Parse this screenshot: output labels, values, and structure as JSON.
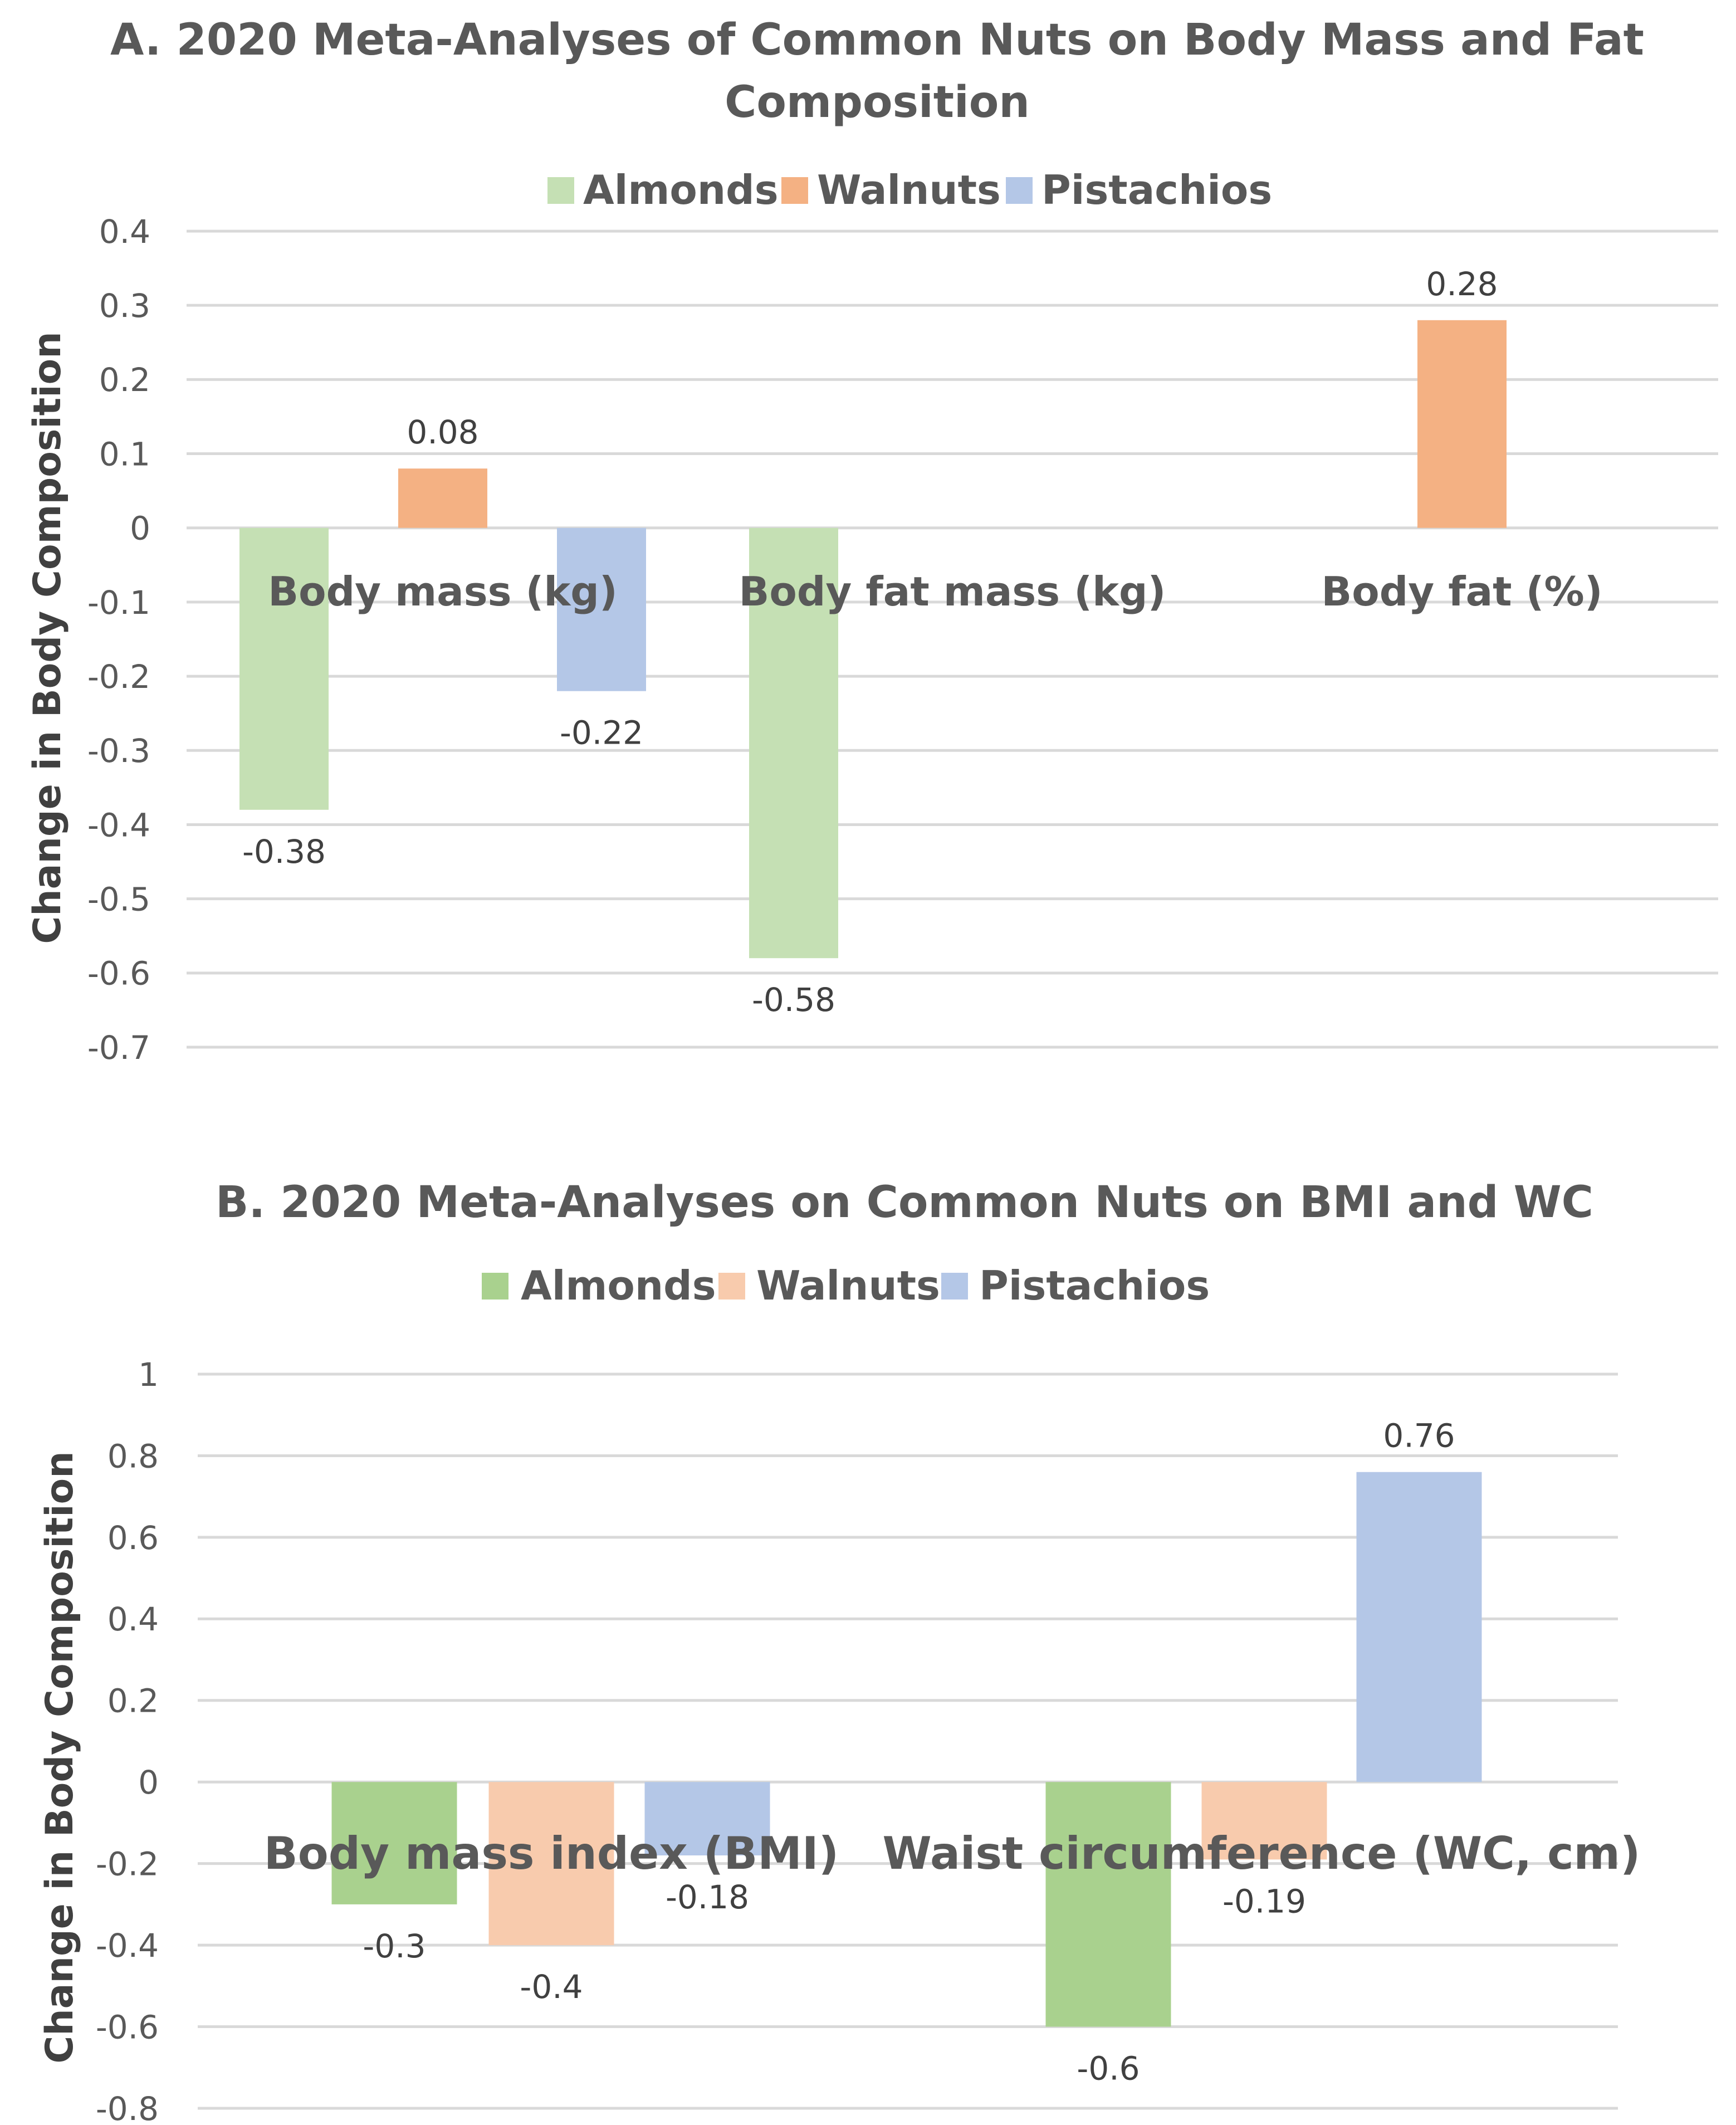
{
  "chart_data": [
    {
      "type": "bar",
      "title": "A. 2020 Meta-Analyses of Common Nuts on Body Mass and Fat Composition",
      "title_lines": [
        "A. 2020 Meta-Analyses of Common Nuts on Body Mass and Fat",
        "Composition"
      ],
      "ylabel": "Change in Body Composition",
      "xlabel": "",
      "ylim": [
        -0.7,
        0.4
      ],
      "yticks": [
        0.4,
        0.3,
        0.2,
        0.1,
        0,
        -0.1,
        -0.2,
        -0.3,
        -0.4,
        -0.5,
        -0.6,
        -0.7
      ],
      "grid": true,
      "legend_position": "top",
      "categories": [
        "Body mass (kg)",
        "Body fat mass (kg)",
        "Body fat (%)"
      ],
      "series": [
        {
          "name": "Almonds",
          "color": "#c5e0b4",
          "values": [
            -0.38,
            -0.58,
            null
          ],
          "labels": [
            "-0.38",
            "-0.58",
            ""
          ]
        },
        {
          "name": "Walnuts",
          "color": "#f4b183",
          "values": [
            0.08,
            null,
            0.28
          ],
          "labels": [
            "0.08",
            "",
            "0.28"
          ]
        },
        {
          "name": "Pistachios",
          "color": "#b4c7e7",
          "values": [
            -0.22,
            null,
            null
          ],
          "labels": [
            "-0.22",
            "",
            ""
          ]
        }
      ]
    },
    {
      "type": "bar",
      "title": "B. 2020 Meta-Analyses on Common Nuts on BMI and WC",
      "title_lines": [
        "B. 2020 Meta-Analyses on Common Nuts on BMI and WC"
      ],
      "ylabel": "Change in Body Composition",
      "xlabel": "",
      "ylim": [
        -0.8,
        1.0
      ],
      "yticks": [
        1,
        0.8,
        0.6,
        0.4,
        0.2,
        0,
        -0.2,
        -0.4,
        -0.6,
        -0.8
      ],
      "grid": true,
      "legend_position": "top",
      "categories": [
        "Body mass index (BMI)",
        "Waist circumference (WC, cm)"
      ],
      "series": [
        {
          "name": "Almonds",
          "color": "#a9d18e",
          "values": [
            -0.3,
            -0.6
          ],
          "labels": [
            "-0.3",
            "-0.6"
          ]
        },
        {
          "name": "Walnuts",
          "color": "#f8cbad",
          "values": [
            -0.4,
            -0.19
          ],
          "labels": [
            "-0.4",
            "-0.19"
          ]
        },
        {
          "name": "Pistachios",
          "color": "#b4c7e7",
          "values": [
            -0.18,
            0.76
          ],
          "labels": [
            "-0.18",
            "0.76"
          ]
        }
      ]
    }
  ]
}
